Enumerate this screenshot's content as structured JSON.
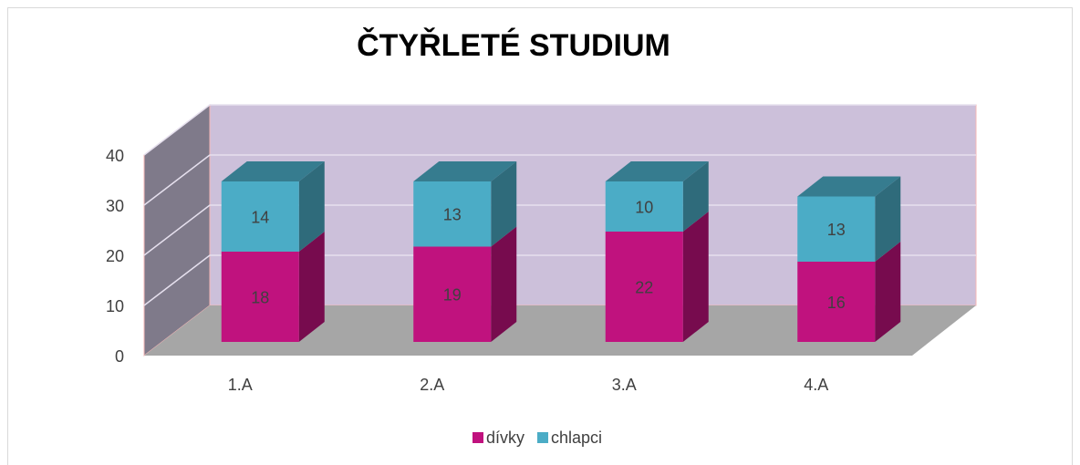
{
  "chart_data": {
    "type": "bar",
    "stacked": true,
    "title": "ČTYŘLETÉ STUDIUM",
    "categories": [
      "1.A",
      "2.A",
      "3.A",
      "4.A"
    ],
    "series": [
      {
        "name": "dívky",
        "color": "#c0127e",
        "values": [
          18,
          19,
          22,
          16
        ]
      },
      {
        "name": "chlapci",
        "color": "#4bacc6",
        "values": [
          14,
          13,
          10,
          13
        ]
      }
    ],
    "ylim": [
      0,
      40
    ],
    "yticks": [
      0,
      10,
      20,
      30,
      40
    ],
    "grid": true,
    "legend": "bottom"
  }
}
